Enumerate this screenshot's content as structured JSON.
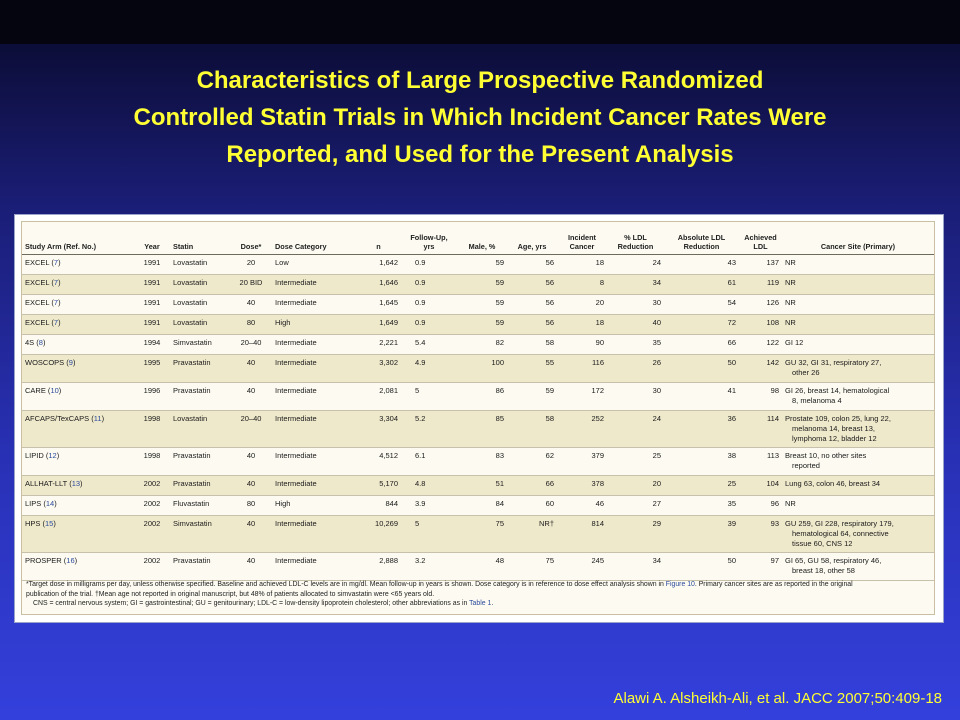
{
  "slide": {
    "title_lines": [
      "Characteristics of Large Prospective Randomized",
      "Controlled Statin Trials in Which Incident Cancer Rates Were",
      "Reported, and Used for the Present Analysis"
    ],
    "citation": "Alawi A. Alsheikh-Ali, et al. JACC 2007;50:409-18"
  },
  "colors": {
    "title": "#ffff33",
    "background_top": "#0a0a1e",
    "background_bottom": "#3440dc",
    "table_shade": "#efe9cc",
    "link": "#2a4a9c"
  },
  "table": {
    "headers": [
      [
        "Study Arm (Ref. No.)"
      ],
      [
        "Year"
      ],
      [
        "Statin"
      ],
      [
        "Dose*"
      ],
      [
        "Dose Category"
      ],
      [
        "n"
      ],
      [
        "Follow-Up,",
        "yrs"
      ],
      [
        "Male, %"
      ],
      [
        "Age, yrs"
      ],
      [
        "Incident",
        "Cancer"
      ],
      [
        "% LDL",
        "Reduction"
      ],
      [
        "Absolute LDL",
        "Reduction"
      ],
      [
        "Achieved",
        "LDL"
      ],
      [
        "Cancer Site (Primary)"
      ]
    ],
    "rows": [
      {
        "study": "EXCEL",
        "ref": "7",
        "year": "1991",
        "statin": "Lovastatin",
        "dose": "20",
        "category": "Low",
        "n": "1,642",
        "followup": "0.9",
        "male": "59",
        "age": "56",
        "cancer": "18",
        "ldl_pct": "24",
        "ldl_abs": "43",
        "ldl_achieved": "137",
        "site": [
          "NR"
        ]
      },
      {
        "study": "EXCEL",
        "ref": "7",
        "year": "1991",
        "statin": "Lovastatin",
        "dose": "20 BID",
        "category": "Intermediate",
        "n": "1,646",
        "followup": "0.9",
        "male": "59",
        "age": "56",
        "cancer": "8",
        "ldl_pct": "34",
        "ldl_abs": "61",
        "ldl_achieved": "119",
        "site": [
          "NR"
        ]
      },
      {
        "study": "EXCEL",
        "ref": "7",
        "year": "1991",
        "statin": "Lovastatin",
        "dose": "40",
        "category": "Intermediate",
        "n": "1,645",
        "followup": "0.9",
        "male": "59",
        "age": "56",
        "cancer": "20",
        "ldl_pct": "30",
        "ldl_abs": "54",
        "ldl_achieved": "126",
        "site": [
          "NR"
        ]
      },
      {
        "study": "EXCEL",
        "ref": "7",
        "year": "1991",
        "statin": "Lovastatin",
        "dose": "80",
        "category": "High",
        "n": "1,649",
        "followup": "0.9",
        "male": "59",
        "age": "56",
        "cancer": "18",
        "ldl_pct": "40",
        "ldl_abs": "72",
        "ldl_achieved": "108",
        "site": [
          "NR"
        ]
      },
      {
        "study": "4S",
        "ref": "8",
        "year": "1994",
        "statin": "Simvastatin",
        "dose": "20–40",
        "category": "Intermediate",
        "n": "2,221",
        "followup": "5.4",
        "male": "82",
        "age": "58",
        "cancer": "90",
        "ldl_pct": "35",
        "ldl_abs": "66",
        "ldl_achieved": "122",
        "site": [
          "GI 12"
        ]
      },
      {
        "study": "WOSCOPS",
        "ref": "9",
        "year": "1995",
        "statin": "Pravastatin",
        "dose": "40",
        "category": "Intermediate",
        "n": "3,302",
        "followup": "4.9",
        "male": "100",
        "age": "55",
        "cancer": "116",
        "ldl_pct": "26",
        "ldl_abs": "50",
        "ldl_achieved": "142",
        "site": [
          "GU 32, GI 31, respiratory 27,",
          "other 26"
        ]
      },
      {
        "study": "CARE",
        "ref": "10",
        "year": "1996",
        "statin": "Pravastatin",
        "dose": "40",
        "category": "Intermediate",
        "n": "2,081",
        "followup": "5",
        "male": "86",
        "age": "59",
        "cancer": "172",
        "ldl_pct": "30",
        "ldl_abs": "41",
        "ldl_achieved": "98",
        "site": [
          "GI 26, breast 14, hematological",
          "8, melanoma 4"
        ]
      },
      {
        "study": "AFCAPS/TexCAPS",
        "ref": "11",
        "year": "1998",
        "statin": "Lovastatin",
        "dose": "20–40",
        "category": "Intermediate",
        "n": "3,304",
        "followup": "5.2",
        "male": "85",
        "age": "58",
        "cancer": "252",
        "ldl_pct": "24",
        "ldl_abs": "36",
        "ldl_achieved": "114",
        "site": [
          "Prostate 109, colon 25, lung 22,",
          "melanoma 14, breast 13,",
          "lymphoma 12, bladder 12"
        ]
      },
      {
        "study": "LIPID",
        "ref": "12",
        "year": "1998",
        "statin": "Pravastatin",
        "dose": "40",
        "category": "Intermediate",
        "n": "4,512",
        "followup": "6.1",
        "male": "83",
        "age": "62",
        "cancer": "379",
        "ldl_pct": "25",
        "ldl_abs": "38",
        "ldl_achieved": "113",
        "site": [
          "Breast 10, no other sites",
          "reported"
        ]
      },
      {
        "study": "ALLHAT-LLT",
        "ref": "13",
        "year": "2002",
        "statin": "Pravastatin",
        "dose": "40",
        "category": "Intermediate",
        "n": "5,170",
        "followup": "4.8",
        "male": "51",
        "age": "66",
        "cancer": "378",
        "ldl_pct": "20",
        "ldl_abs": "25",
        "ldl_achieved": "104",
        "site": [
          "Lung 63, colon 46, breast 34"
        ]
      },
      {
        "study": "LIPS",
        "ref": "14",
        "year": "2002",
        "statin": "Fluvastatin",
        "dose": "80",
        "category": "High",
        "n": "844",
        "followup": "3.9",
        "male": "84",
        "age": "60",
        "cancer": "46",
        "ldl_pct": "27",
        "ldl_abs": "35",
        "ldl_achieved": "96",
        "site": [
          "NR"
        ]
      },
      {
        "study": "HPS",
        "ref": "15",
        "year": "2002",
        "statin": "Simvastatin",
        "dose": "40",
        "category": "Intermediate",
        "n": "10,269",
        "followup": "5",
        "male": "75",
        "age": "NR†",
        "cancer": "814",
        "ldl_pct": "29",
        "ldl_abs": "39",
        "ldl_achieved": "93",
        "site": [
          "GU 259, GI 228, respiratory 179,",
          "hematological 64, connective",
          "tissue 60, CNS 12"
        ]
      },
      {
        "study": "PROSPER",
        "ref": "16",
        "year": "2002",
        "statin": "Pravastatin",
        "dose": "40",
        "category": "Intermediate",
        "n": "2,888",
        "followup": "3.2",
        "male": "48",
        "age": "75",
        "cancer": "245",
        "ldl_pct": "34",
        "ldl_abs": "50",
        "ldl_achieved": "97",
        "site": [
          "GI 65, GU 58, respiratory 46,",
          "breast 18, other 58"
        ]
      }
    ],
    "footnote": {
      "line1_pre": "*Target dose in milligrams per day, unless otherwise specified. Baseline and achieved LDL-C levels are in mg/dl. Mean follow-up in years is shown. Dose category is in reference to dose effect analysis shown in ",
      "line1_link": "Figure 10",
      "line1_post": ". Primary cancer sites are as reported in the original",
      "line2": "publication of the trial. †Mean age not reported in original manuscript, but 48% of patients allocated to simvastatin were <65 years old.",
      "line3_pre": "CNS = central nervous system; GI = gastrointestinal; GU = genitourinary; LDL-C = low-density lipoprotein cholesterol; other abbreviations as in ",
      "line3_link": "Table 1",
      "line3_post": "."
    }
  }
}
